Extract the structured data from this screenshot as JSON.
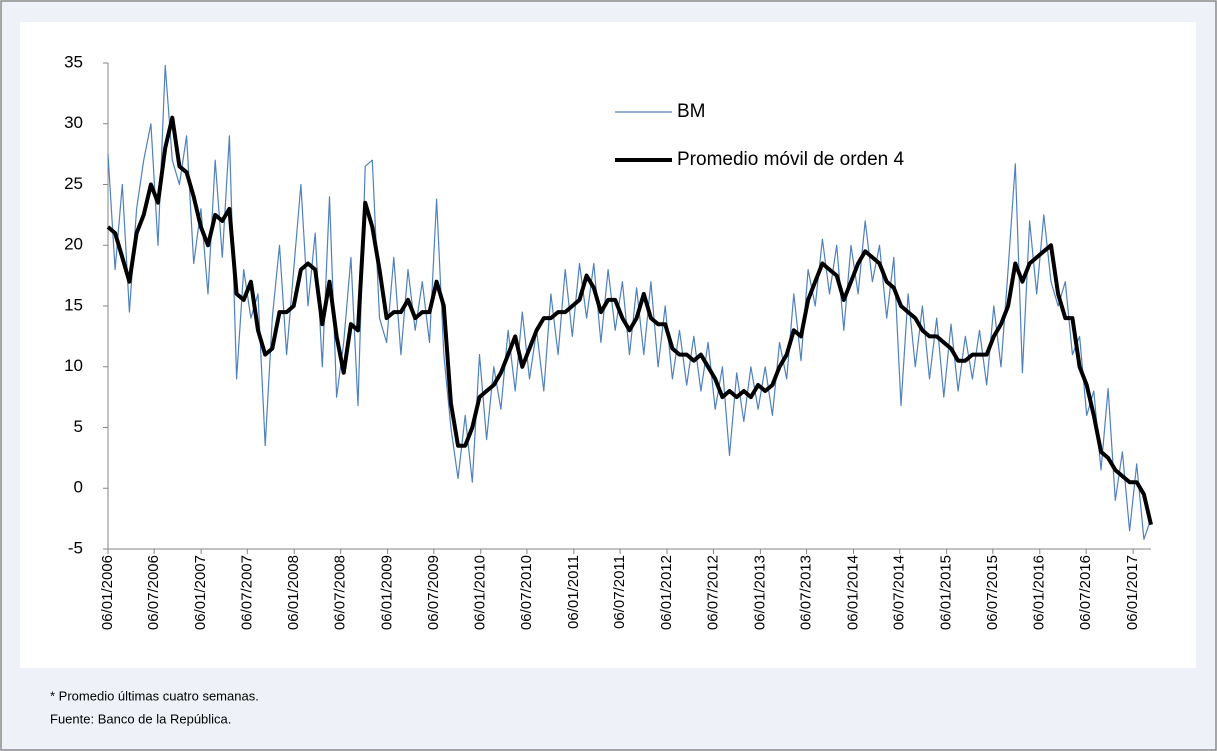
{
  "chart_data": {
    "type": "line",
    "footnotes": [
      "* Promedio últimas cuatro semanas.",
      "Fuente: Banco de la República."
    ],
    "x": [
      "06/01/2006",
      "03/02/2006",
      "03/03/2006",
      "31/03/2006",
      "28/04/2006",
      "26/05/2006",
      "23/06/2006",
      "21/07/2006",
      "18/08/2006",
      "15/09/2006",
      "13/10/2006",
      "10/11/2006",
      "08/12/2006",
      "05/01/2007",
      "02/02/2007",
      "02/03/2007",
      "30/03/2007",
      "27/04/2007",
      "25/05/2007",
      "22/06/2007",
      "20/07/2007",
      "17/08/2007",
      "14/09/2007",
      "12/10/2007",
      "09/11/2007",
      "07/12/2007",
      "04/01/2008",
      "01/02/2008",
      "29/02/2008",
      "28/03/2008",
      "25/04/2008",
      "23/05/2008",
      "20/06/2008",
      "18/07/2008",
      "15/08/2008",
      "12/09/2008",
      "10/10/2008",
      "07/11/2008",
      "05/12/2008",
      "02/01/2009",
      "30/01/2009",
      "27/02/2009",
      "27/03/2009",
      "24/04/2009",
      "22/05/2009",
      "19/06/2009",
      "17/07/2009",
      "14/08/2009",
      "11/09/2009",
      "09/10/2009",
      "06/11/2009",
      "04/12/2009",
      "01/01/2010",
      "29/01/2010",
      "26/02/2010",
      "26/03/2010",
      "23/04/2010",
      "21/05/2010",
      "18/06/2010",
      "16/07/2010",
      "13/08/2010",
      "10/09/2010",
      "08/10/2010",
      "05/11/2010",
      "03/12/2010",
      "31/12/2010",
      "28/01/2011",
      "25/02/2011",
      "25/03/2011",
      "22/04/2011",
      "20/05/2011",
      "17/06/2011",
      "15/07/2011",
      "12/08/2011",
      "09/09/2011",
      "07/10/2011",
      "04/11/2011",
      "02/12/2011",
      "30/12/2011",
      "27/01/2012",
      "24/02/2012",
      "23/03/2012",
      "20/04/2012",
      "18/05/2012",
      "15/06/2012",
      "13/07/2012",
      "10/08/2012",
      "07/09/2012",
      "05/10/2012",
      "02/11/2012",
      "30/11/2012",
      "28/12/2012",
      "25/01/2013",
      "22/02/2013",
      "22/03/2013",
      "19/04/2013",
      "17/05/2013",
      "14/06/2013",
      "12/07/2013",
      "09/08/2013",
      "06/09/2013",
      "04/10/2013",
      "01/11/2013",
      "29/11/2013",
      "27/12/2013",
      "24/01/2014",
      "21/02/2014",
      "21/03/2014",
      "18/04/2014",
      "16/05/2014",
      "13/06/2014",
      "11/07/2014",
      "08/08/2014",
      "05/09/2014",
      "03/10/2014",
      "31/10/2014",
      "28/11/2014",
      "26/12/2014",
      "23/01/2015",
      "20/02/2015",
      "20/03/2015",
      "17/04/2015",
      "15/05/2015",
      "12/06/2015",
      "10/07/2015",
      "07/08/2015",
      "04/09/2015",
      "02/10/2015",
      "30/10/2015",
      "27/11/2015",
      "25/12/2015",
      "22/01/2016",
      "19/02/2016",
      "18/03/2016",
      "15/04/2016",
      "13/05/2016",
      "10/06/2016",
      "08/07/2016",
      "05/08/2016",
      "02/09/2016",
      "30/09/2016",
      "28/10/2016",
      "25/11/2016",
      "23/12/2016",
      "20/01/2017",
      "17/02/2017",
      "17/03/2017"
    ],
    "series": [
      {
        "name": "BM",
        "color": "#4f81bd",
        "values": [
          27.5,
          18,
          25,
          14.5,
          23,
          27,
          30,
          20,
          34.8,
          27,
          25,
          29,
          18.5,
          23,
          16,
          27,
          19,
          29,
          9,
          18,
          14,
          16,
          3.5,
          14,
          20,
          11,
          18,
          25,
          15,
          21,
          10,
          24,
          7.5,
          12,
          19,
          6.8,
          26.5,
          27,
          14,
          12,
          19,
          11,
          18,
          13,
          17,
          12,
          23.8,
          11,
          5,
          0.8,
          6,
          0.5,
          11,
          4,
          10,
          6.5,
          13,
          8,
          14.5,
          9,
          13,
          8,
          16,
          11,
          18,
          12.5,
          18.5,
          14,
          18.5,
          12,
          18,
          13,
          17,
          11,
          16.5,
          11,
          17,
          10,
          15,
          9,
          13,
          8.5,
          12.5,
          8,
          12,
          6.5,
          10,
          2.7,
          9.5,
          5.5,
          10,
          6.5,
          10,
          6,
          12,
          9,
          16,
          10.5,
          18,
          15,
          20.5,
          16,
          20,
          13,
          20,
          16,
          22,
          17,
          20,
          14,
          19,
          6.8,
          16,
          10,
          15,
          9,
          14,
          7.5,
          13.5,
          8,
          12.5,
          9,
          13,
          8.5,
          15,
          10,
          18,
          26.7,
          9.5,
          22,
          16,
          22.5,
          17,
          15,
          17,
          11,
          12.5,
          6,
          8,
          1.5,
          8.2,
          -1,
          3,
          -3.5,
          2,
          -4.2,
          -2.5
        ]
      },
      {
        "name": "Promedio móvil de orden 4",
        "color": "#000000",
        "values": [
          21.5,
          21,
          19,
          17,
          21,
          22.5,
          25,
          23.5,
          28,
          30.5,
          26.5,
          26,
          24,
          21.5,
          20,
          22.5,
          22,
          23,
          16,
          15.5,
          17,
          13,
          11,
          11.5,
          14.5,
          14.5,
          15,
          18,
          18.5,
          18,
          13.5,
          17,
          12.5,
          9.5,
          13.5,
          13,
          23.5,
          21.5,
          18,
          14,
          14.5,
          14.5,
          15.5,
          14,
          14.5,
          14.5,
          17,
          15,
          7,
          3.5,
          3.5,
          5,
          7.5,
          8,
          8.5,
          9.5,
          11,
          12.5,
          10,
          11.5,
          13,
          14,
          14,
          14.5,
          14.5,
          15,
          15.5,
          17.5,
          16.5,
          14.5,
          15.5,
          15.5,
          14,
          13,
          14,
          16,
          14,
          13.5,
          13.5,
          11.5,
          11,
          11,
          10.5,
          11,
          10,
          9,
          7.5,
          8,
          7.5,
          8,
          7.5,
          8.5,
          8,
          8.5,
          10,
          11,
          13,
          12.5,
          15.5,
          17,
          18.5,
          18,
          17.5,
          15.5,
          17,
          18.5,
          19.5,
          19,
          18.5,
          17,
          16.5,
          15,
          14.5,
          14,
          13,
          12.5,
          12.5,
          12,
          11.5,
          10.5,
          10.5,
          11,
          11,
          11,
          12.5,
          13.5,
          15,
          18.5,
          17,
          18.5,
          19,
          19.5,
          20,
          16,
          14,
          14,
          10,
          8.5,
          6,
          3,
          2.5,
          1.5,
          1,
          0.5,
          0.5,
          -0.5,
          -3
        ]
      }
    ],
    "xlim": [
      "06/01/2006",
      "17/03/2017"
    ],
    "xticks": [
      "06/01/2006",
      "06/07/2006",
      "06/01/2007",
      "06/07/2007",
      "06/01/2008",
      "06/07/2008",
      "06/01/2009",
      "06/07/2009",
      "06/01/2010",
      "06/07/2010",
      "06/01/2011",
      "06/07/2011",
      "06/01/2012",
      "06/07/2012",
      "06/01/2013",
      "06/07/2013",
      "06/01/2014",
      "06/07/2014",
      "06/01/2015",
      "06/07/2015",
      "06/01/2016",
      "06/07/2016",
      "06/01/2017"
    ],
    "ylim": [
      -5,
      35
    ],
    "yticks": [
      -5,
      0,
      5,
      10,
      15,
      20,
      25,
      30,
      35
    ],
    "grid": false
  }
}
